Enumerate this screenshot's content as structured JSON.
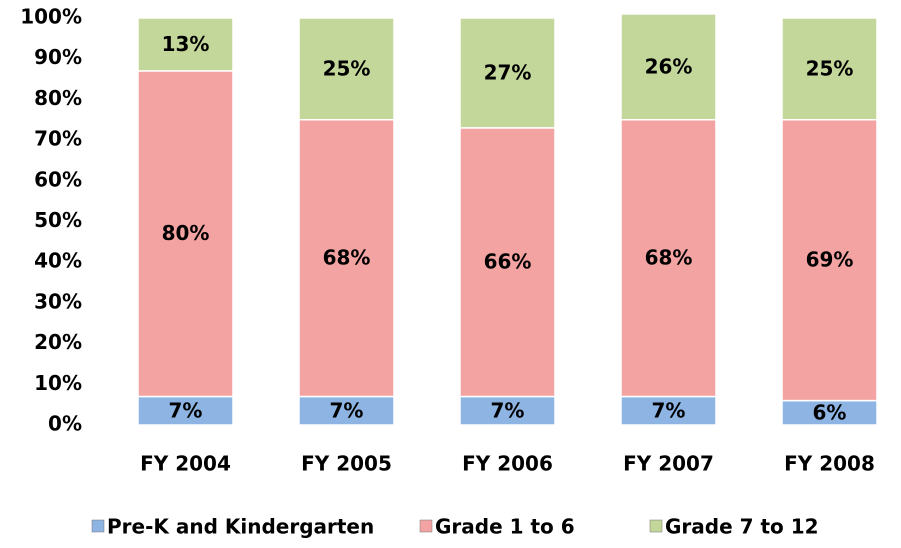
{
  "chart_data": {
    "type": "stacked_bar",
    "categories": [
      "FY 2004",
      "FY 2005",
      "FY 2006",
      "FY 2007",
      "FY 2008"
    ],
    "series": [
      {
        "name": "Pre-K and Kindergarten",
        "color": "#8db4e2",
        "values": [
          7,
          7,
          7,
          7,
          6
        ],
        "value_labels": [
          "7%",
          "7%",
          "7%",
          "7%",
          "6%"
        ]
      },
      {
        "name": "Grade 1 to 6",
        "color": "#f4a3a3",
        "values": [
          80,
          68,
          66,
          68,
          69
        ],
        "value_labels": [
          "80%",
          "68%",
          "66%",
          "68%",
          "69%"
        ]
      },
      {
        "name": "Grade 7 to 12",
        "color": "#c4d79b",
        "values": [
          13,
          25,
          27,
          26,
          25
        ],
        "value_labels": [
          "13%",
          "25%",
          "27%",
          "26%",
          "25%"
        ]
      }
    ],
    "ylim": [
      0,
      100
    ],
    "yticks": [
      {
        "value": 0,
        "label": "0%"
      },
      {
        "value": 10,
        "label": "10%"
      },
      {
        "value": 20,
        "label": "20%"
      },
      {
        "value": 30,
        "label": "30%"
      },
      {
        "value": 40,
        "label": "40%"
      },
      {
        "value": 50,
        "label": "50%"
      },
      {
        "value": 60,
        "label": "60%"
      },
      {
        "value": 70,
        "label": "70%"
      },
      {
        "value": 80,
        "label": "80%"
      },
      {
        "value": 90,
        "label": "90%"
      },
      {
        "value": 100,
        "label": "100%"
      }
    ],
    "legend": "bottom"
  }
}
